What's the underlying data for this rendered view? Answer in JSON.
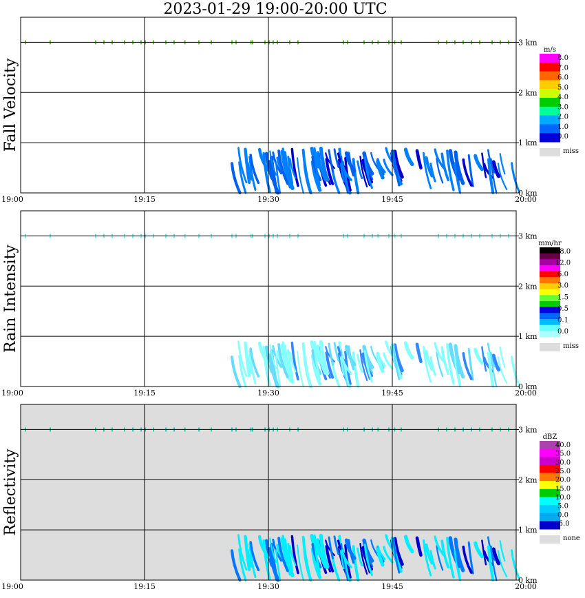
{
  "title": "2023-01-29   19:00-20:00 UTC",
  "chart_data": [
    {
      "type": "heatmap",
      "id": "fall",
      "ylabel": "Fall Velocity",
      "x_ticks": [
        "19:00",
        "19:15",
        "19:30",
        "19:45",
        "20:00"
      ],
      "y_ticks": [
        "0 km",
        "1 km",
        "2 km",
        "3 km"
      ],
      "ylim_km": [
        0,
        3.5
      ],
      "missing_background": false,
      "legend": {
        "unit": "m/s",
        "labels": [
          "8.0",
          "7.0",
          "6.0",
          "5.0",
          "4.0",
          "3.0",
          "2.0",
          "1.0",
          "0.0"
        ],
        "colors": [
          "#ff00ff",
          "#ff0000",
          "#ff6600",
          "#ffcc00",
          "#ccff00",
          "#00cc00",
          "#00ff99",
          "#00aaff",
          "#0066ff",
          "#0000dd"
        ],
        "miss_label": "miss",
        "miss_color": "#dddddd"
      },
      "colors": {
        "light": "#0080ff",
        "dark": "#0000cc",
        "mid": "#0060ee"
      },
      "top_color": "#66cc33"
    },
    {
      "type": "heatmap",
      "id": "rain",
      "ylabel": "Rain Intensity",
      "x_ticks": [
        "19:00",
        "19:15",
        "19:30",
        "19:45",
        "20:00"
      ],
      "y_ticks": [
        "0 km",
        "1 km",
        "2 km",
        "3 km"
      ],
      "ylim_km": [
        0,
        3.5
      ],
      "missing_background": false,
      "legend": {
        "unit": "mm/hr",
        "labels": [
          "48.0",
          "12.0",
          "6.0",
          "3.0",
          "1.5",
          "0.5",
          "0.1",
          "0.0"
        ],
        "colors": [
          "#000000",
          "#660044",
          "#aa00aa",
          "#ff00ff",
          "#ff0000",
          "#ff7700",
          "#ffcc00",
          "#ffff00",
          "#66ff33",
          "#00cc00",
          "#0000dd",
          "#0066ff",
          "#00bbff",
          "#66ffff",
          "#aaffff"
        ],
        "miss_label": "miss",
        "miss_color": "#dddddd"
      },
      "colors": {
        "light": "#88ffff",
        "dark": "#3388ff",
        "mid": "#66ddff"
      },
      "top_color": "#55ffee"
    },
    {
      "type": "heatmap",
      "id": "refl",
      "ylabel": "Reflectivity",
      "x_ticks": [
        "19:00",
        "19:15",
        "19:30",
        "19:45",
        "20:00"
      ],
      "y_ticks": [
        "0 km",
        "1 km",
        "2 km",
        "3 km"
      ],
      "ylim_km": [
        0,
        3.5
      ],
      "missing_background": true,
      "legend": {
        "unit": "dBZ",
        "labels": [
          "40.0",
          "35.0",
          "30.0",
          "25.0",
          "20.0",
          "15.0",
          "10.0",
          "5.0",
          "0.0",
          "-5.0"
        ],
        "colors": [
          "#aa44aa",
          "#ff00ff",
          "#cc00cc",
          "#ff0000",
          "#ff7700",
          "#ffff00",
          "#00cc00",
          "#00ffff",
          "#00ccff",
          "#00aaee",
          "#0000cc"
        ],
        "miss_label": "none",
        "miss_color": "#dddddd"
      },
      "colors": {
        "light": "#00eeff",
        "dark": "#0000cc",
        "mid": "#0077ff"
      },
      "top_color": "#22ccaa"
    }
  ]
}
